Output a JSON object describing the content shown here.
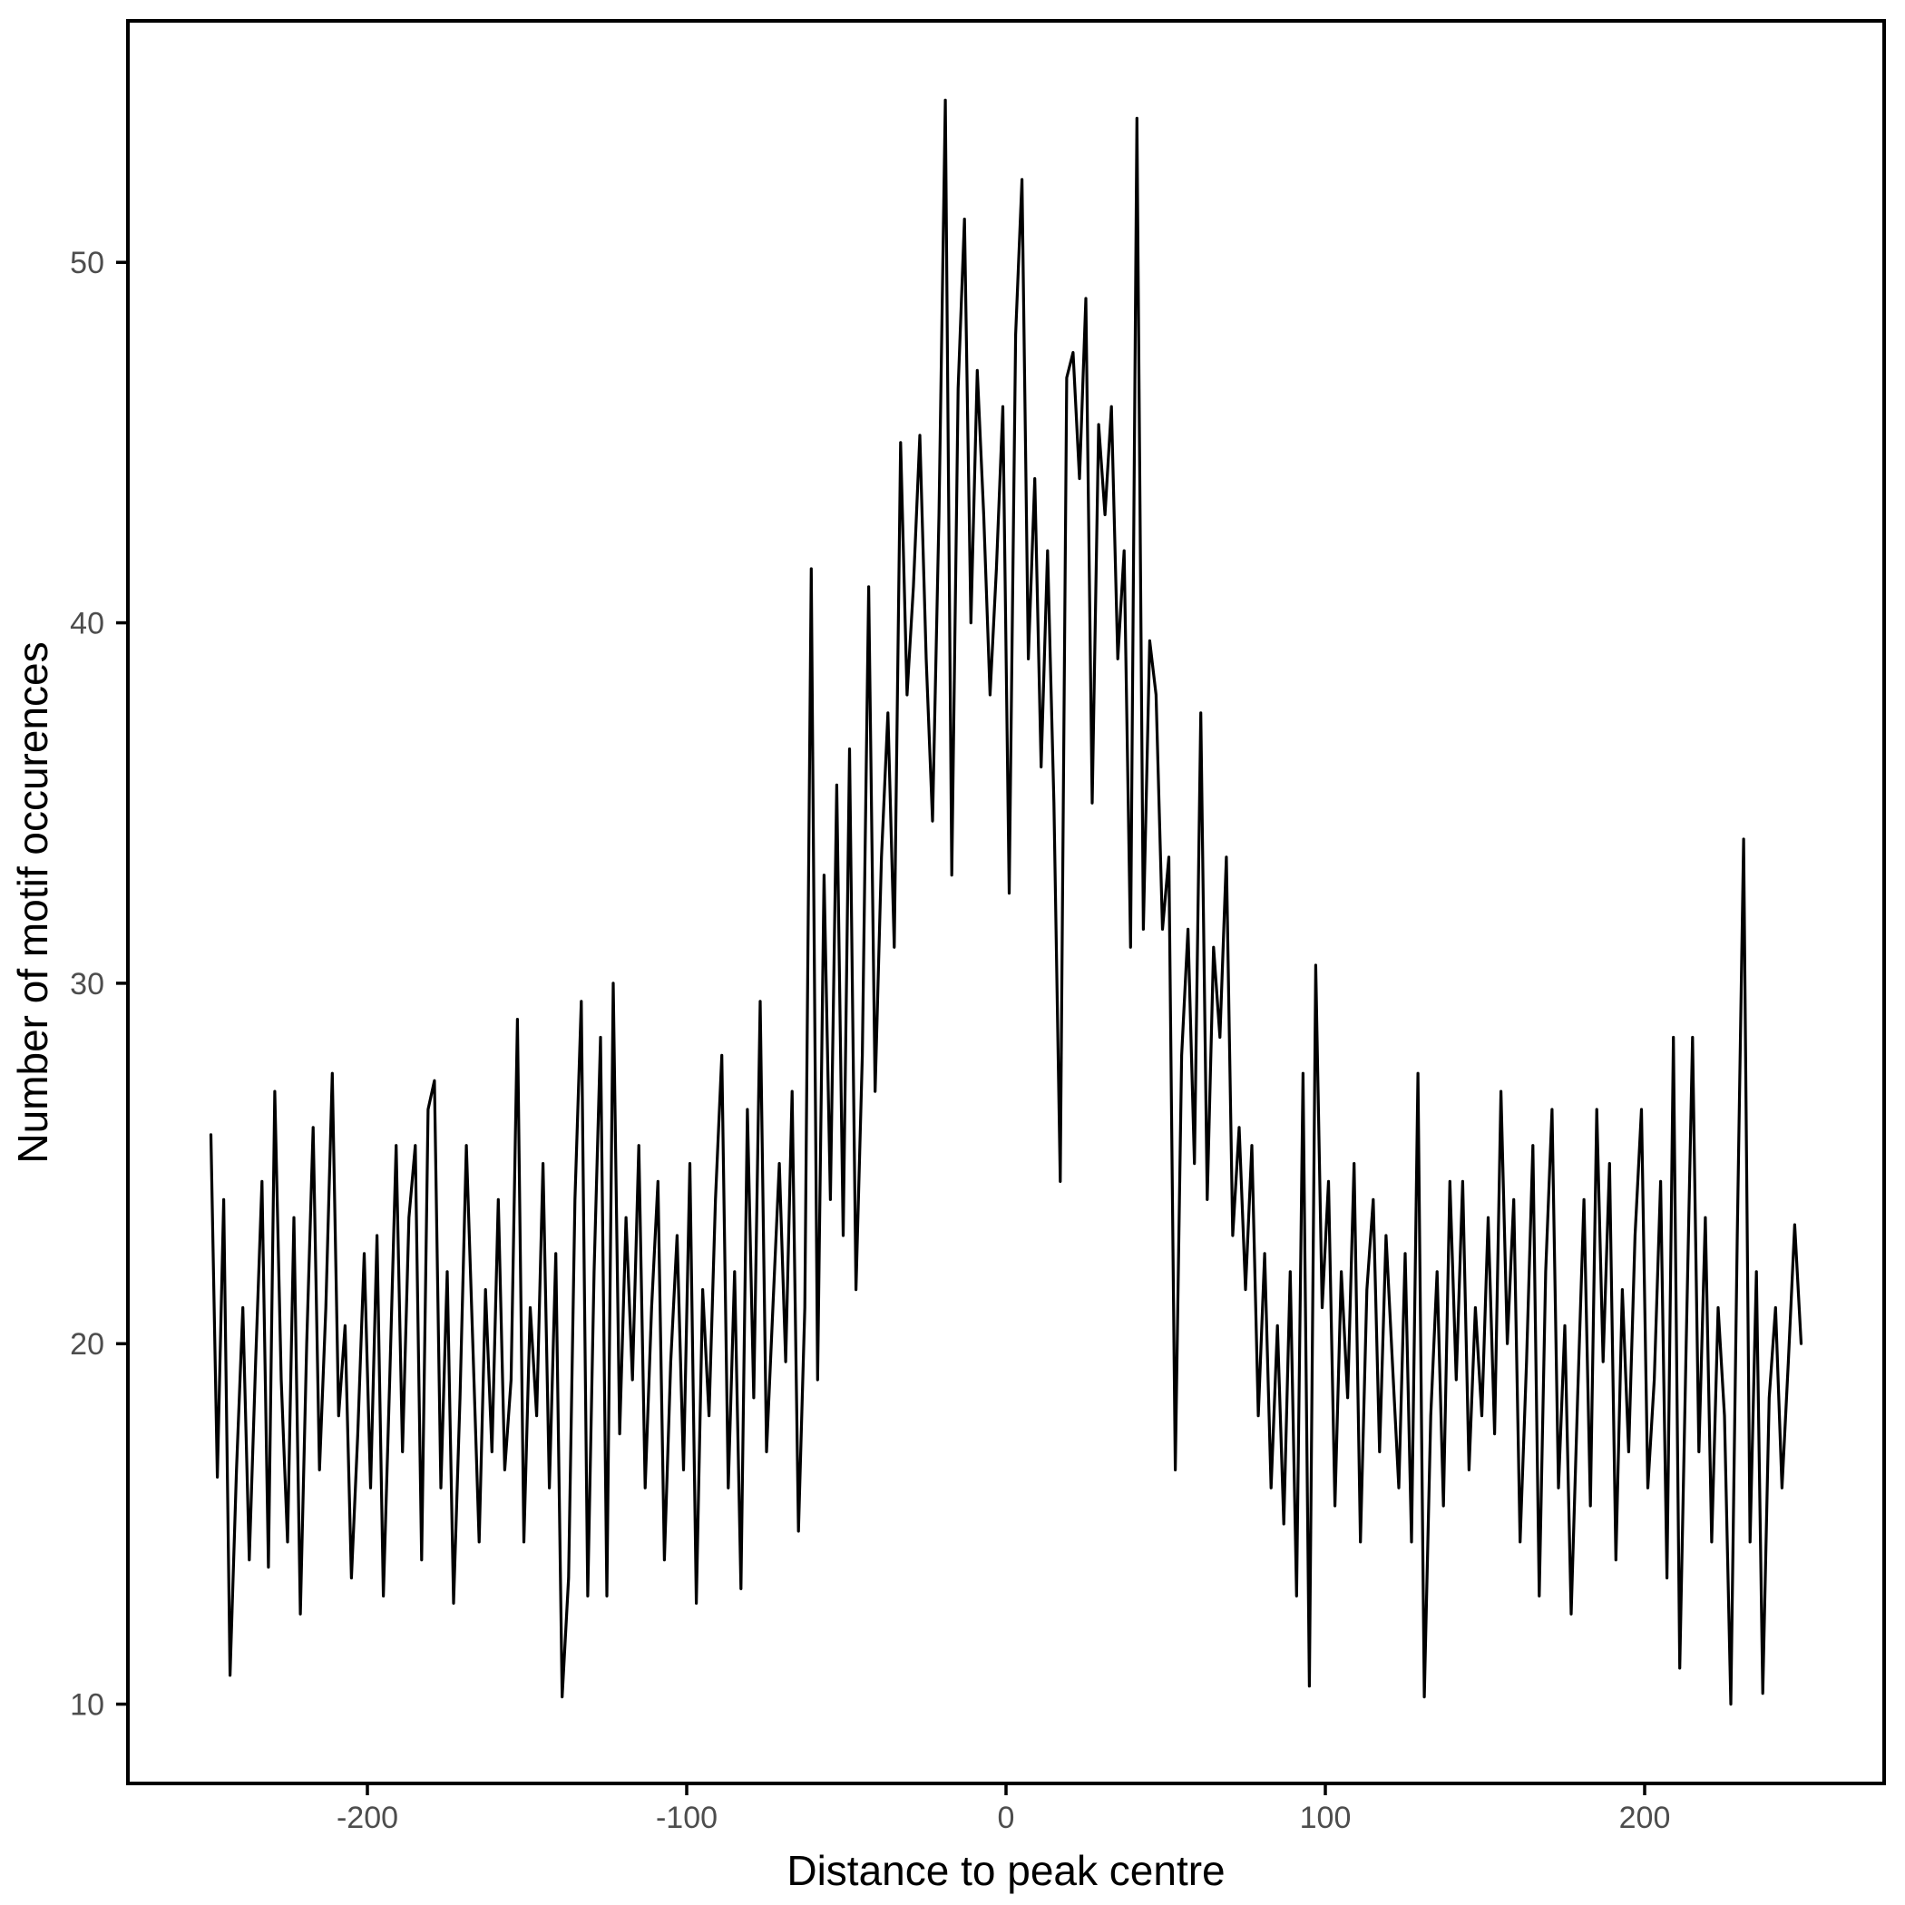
{
  "figure": {
    "background_color": "#FFFFFF",
    "panel_border_color": "#000000",
    "line_color": "#000000",
    "tick_label_color": "#4D4D4D",
    "axis_title_color": "#000000"
  },
  "chart_data": {
    "type": "line",
    "title": "",
    "xlabel": "Distance to peak centre",
    "ylabel": "Number of motif occurences",
    "legend": null,
    "grid": false,
    "xlim": [
      -275,
      275
    ],
    "ylim": [
      7.8,
      56.7
    ],
    "x_ticks": [
      -200,
      -100,
      0,
      100,
      200
    ],
    "y_ticks": [
      10,
      20,
      30,
      40,
      50
    ],
    "x_start": -249,
    "x_step": 2,
    "y": [
      25.8,
      16.3,
      24.0,
      10.8,
      16.5,
      21.0,
      14.0,
      19.5,
      24.5,
      13.8,
      27.0,
      19.0,
      14.5,
      23.5,
      12.5,
      20.0,
      26.0,
      16.5,
      21.0,
      27.5,
      18.0,
      20.5,
      13.5,
      17.5,
      22.5,
      16.0,
      23.0,
      13.0,
      19.0,
      25.5,
      17.0,
      23.5,
      25.5,
      14.0,
      26.5,
      27.3,
      16.0,
      22.0,
      12.8,
      18.5,
      25.5,
      20.0,
      14.5,
      21.5,
      17.0,
      24.0,
      16.5,
      19.0,
      29.0,
      14.5,
      21.0,
      18.0,
      25.0,
      16.0,
      22.5,
      10.2,
      13.5,
      24.0,
      29.5,
      13.0,
      22.0,
      28.5,
      13.0,
      30.0,
      17.5,
      23.5,
      19.0,
      25.5,
      16.0,
      21.0,
      24.5,
      14.0,
      19.5,
      23.0,
      16.5,
      25.0,
      12.8,
      21.5,
      18.0,
      24.0,
      28.0,
      16.0,
      22.0,
      13.2,
      26.5,
      18.5,
      29.5,
      17.0,
      21.0,
      25.0,
      19.5,
      27.0,
      14.8,
      21.0,
      41.5,
      19.0,
      33.0,
      24.0,
      35.5,
      23.0,
      36.5,
      21.5,
      28.0,
      41.0,
      27.0,
      33.5,
      37.5,
      31.0,
      45.0,
      38.0,
      41.0,
      45.2,
      39.0,
      34.5,
      43.0,
      54.5,
      33.0,
      46.5,
      51.2,
      40.0,
      47.0,
      43.0,
      38.0,
      41.5,
      46.0,
      32.5,
      48.0,
      52.3,
      39.0,
      44.0,
      36.0,
      42.0,
      35.0,
      24.5,
      46.8,
      47.5,
      44.0,
      49.0,
      35.0,
      45.5,
      43.0,
      46.0,
      39.0,
      42.0,
      31.0,
      54.0,
      31.5,
      39.5,
      38.0,
      31.5,
      33.5,
      16.5,
      28.0,
      31.5,
      25.0,
      37.5,
      24.0,
      31.0,
      28.5,
      33.5,
      23.0,
      26.0,
      21.5,
      25.5,
      18.0,
      22.5,
      16.0,
      20.5,
      15.0,
      22.0,
      13.0,
      27.5,
      10.5,
      30.5,
      21.0,
      24.5,
      15.5,
      22.0,
      18.5,
      25.0,
      14.5,
      21.5,
      24.0,
      17.0,
      23.0,
      19.5,
      16.0,
      22.5,
      14.5,
      27.5,
      10.2,
      18.0,
      22.0,
      15.5,
      24.5,
      19.0,
      24.5,
      16.5,
      21.0,
      18.0,
      23.5,
      17.5,
      27.0,
      20.0,
      24.0,
      14.5,
      19.5,
      25.5,
      13.0,
      22.0,
      26.5,
      16.0,
      20.5,
      12.5,
      18.5,
      24.0,
      15.5,
      26.5,
      19.5,
      25.0,
      14.0,
      21.5,
      17.0,
      23.0,
      26.5,
      16.0,
      19.0,
      24.5,
      13.5,
      28.5,
      11.0,
      20.0,
      28.5,
      17.0,
      23.5,
      14.5,
      21.0,
      18.0,
      10.0,
      23.0,
      34.0,
      14.5,
      22.0,
      10.3,
      18.5,
      21.0,
      16.0,
      19.5,
      23.3,
      20.0
    ]
  }
}
